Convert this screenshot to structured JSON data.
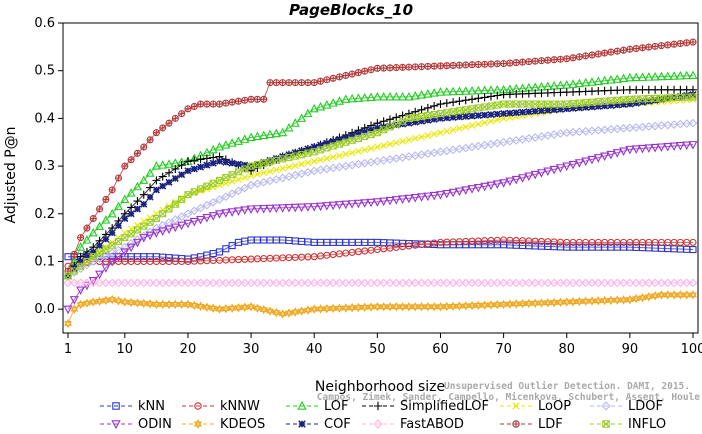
{
  "chart_data": {
    "type": "line",
    "title": "PageBlocks_10",
    "xlabel": "Neighborhood size",
    "ylabel": "Adjusted P@n",
    "xlim": [
      1,
      100
    ],
    "ylim": [
      -0.05,
      0.6
    ],
    "xticks": [
      "1",
      "10",
      "20",
      "30",
      "40",
      "50",
      "60",
      "70",
      "80",
      "90",
      "100"
    ],
    "yticks": [
      "0.0",
      "0.1",
      "0.2",
      "0.3",
      "0.4",
      "0.5",
      "0.6"
    ],
    "legend_position": "bottom",
    "series": [
      {
        "name": "kNN",
        "color": "#2f36c8",
        "marker": "square",
        "x": [
          1,
          5,
          10,
          15,
          20,
          22,
          25,
          28,
          30,
          35,
          40,
          50,
          60,
          70,
          80,
          90,
          100
        ],
        "y": [
          0.11,
          0.11,
          0.11,
          0.11,
          0.105,
          0.11,
          0.12,
          0.14,
          0.145,
          0.145,
          0.14,
          0.14,
          0.135,
          0.135,
          0.13,
          0.13,
          0.125
        ]
      },
      {
        "name": "kNNW",
        "color": "#cc3333",
        "marker": "circle",
        "x": [
          1,
          5,
          10,
          20,
          30,
          40,
          50,
          60,
          70,
          80,
          90,
          100
        ],
        "y": [
          0.09,
          0.1,
          0.1,
          0.1,
          0.105,
          0.11,
          0.125,
          0.14,
          0.145,
          0.14,
          0.14,
          0.14
        ]
      },
      {
        "name": "LOF",
        "color": "#22cc22",
        "marker": "triangle-up",
        "x": [
          1,
          3,
          5,
          8,
          10,
          13,
          15,
          20,
          25,
          30,
          35,
          40,
          45,
          50,
          55,
          60,
          70,
          80,
          90,
          100
        ],
        "y": [
          0.07,
          0.13,
          0.16,
          0.2,
          0.23,
          0.27,
          0.3,
          0.31,
          0.34,
          0.36,
          0.37,
          0.42,
          0.44,
          0.445,
          0.445,
          0.455,
          0.46,
          0.47,
          0.485,
          0.49
        ]
      },
      {
        "name": "SimplifiedLOF",
        "color": "#000000",
        "marker": "plus",
        "x": [
          1,
          3,
          5,
          8,
          10,
          13,
          15,
          20,
          25,
          30,
          35,
          40,
          50,
          55,
          60,
          70,
          80,
          90,
          100
        ],
        "y": [
          0.07,
          0.11,
          0.13,
          0.17,
          0.2,
          0.24,
          0.27,
          0.31,
          0.32,
          0.29,
          0.32,
          0.34,
          0.39,
          0.41,
          0.43,
          0.45,
          0.455,
          0.46,
          0.46
        ]
      },
      {
        "name": "LoOP",
        "color": "#e8e800",
        "marker": "x",
        "x": [
          1,
          5,
          10,
          15,
          20,
          25,
          30,
          40,
          50,
          60,
          70,
          80,
          90,
          100
        ],
        "y": [
          0.07,
          0.11,
          0.16,
          0.2,
          0.24,
          0.26,
          0.28,
          0.31,
          0.34,
          0.37,
          0.4,
          0.42,
          0.43,
          0.44
        ]
      },
      {
        "name": "LDOF",
        "color": "#b9b9ee",
        "marker": "diamond",
        "x": [
          1,
          5,
          10,
          15,
          20,
          25,
          30,
          40,
          50,
          60,
          70,
          80,
          90,
          100
        ],
        "y": [
          0.07,
          0.1,
          0.13,
          0.17,
          0.2,
          0.23,
          0.26,
          0.29,
          0.31,
          0.33,
          0.35,
          0.37,
          0.38,
          0.39
        ]
      },
      {
        "name": "ODIN",
        "color": "#9933cc",
        "marker": "triangle-down",
        "x": [
          1,
          3,
          5,
          8,
          10,
          13,
          15,
          20,
          25,
          30,
          40,
          50,
          60,
          70,
          80,
          90,
          100
        ],
        "y": [
          0.0,
          0.04,
          0.06,
          0.1,
          0.12,
          0.15,
          0.16,
          0.18,
          0.2,
          0.21,
          0.215,
          0.225,
          0.24,
          0.265,
          0.3,
          0.335,
          0.345
        ]
      },
      {
        "name": "KDEOS",
        "color": "#f0a820",
        "marker": "hexagram",
        "x": [
          1,
          2,
          3,
          5,
          8,
          10,
          15,
          20,
          25,
          30,
          35,
          40,
          50,
          60,
          70,
          80,
          90,
          95,
          100
        ],
        "y": [
          -0.03,
          0.0,
          0.01,
          0.015,
          0.02,
          0.015,
          0.01,
          0.01,
          0.0,
          0.005,
          -0.01,
          0.0,
          0.005,
          0.005,
          0.01,
          0.015,
          0.02,
          0.03,
          0.03
        ]
      },
      {
        "name": "COF",
        "color": "#1a237e",
        "marker": "star",
        "x": [
          1,
          3,
          5,
          8,
          10,
          13,
          15,
          20,
          25,
          30,
          35,
          40,
          50,
          60,
          70,
          80,
          90,
          100
        ],
        "y": [
          0.07,
          0.1,
          0.12,
          0.16,
          0.19,
          0.22,
          0.25,
          0.29,
          0.31,
          0.3,
          0.32,
          0.34,
          0.38,
          0.4,
          0.41,
          0.42,
          0.43,
          0.45
        ]
      },
      {
        "name": "FastABOD",
        "color": "#ffb3e6",
        "marker": "diamond",
        "x": [
          1,
          5,
          10,
          20,
          30,
          40,
          50,
          60,
          70,
          80,
          90,
          100
        ],
        "y": [
          0.055,
          0.055,
          0.055,
          0.055,
          0.055,
          0.055,
          0.055,
          0.055,
          0.055,
          0.055,
          0.055,
          0.055
        ]
      },
      {
        "name": "LDF",
        "color": "#b33a3a",
        "marker": "circle-plus",
        "x": [
          1,
          3,
          5,
          8,
          10,
          13,
          15,
          20,
          22,
          25,
          30,
          32,
          33,
          35,
          40,
          45,
          50,
          60,
          70,
          80,
          90,
          100
        ],
        "y": [
          0.08,
          0.15,
          0.19,
          0.25,
          0.3,
          0.34,
          0.37,
          0.42,
          0.43,
          0.43,
          0.44,
          0.44,
          0.475,
          0.475,
          0.475,
          0.49,
          0.505,
          0.51,
          0.515,
          0.525,
          0.545,
          0.56
        ]
      },
      {
        "name": "INFLO",
        "color": "#9ccc2a",
        "marker": "square-x",
        "x": [
          1,
          5,
          10,
          15,
          20,
          25,
          30,
          40,
          50,
          55,
          60,
          65,
          70,
          80,
          90,
          100
        ],
        "y": [
          0.07,
          0.11,
          0.15,
          0.19,
          0.24,
          0.27,
          0.3,
          0.33,
          0.37,
          0.4,
          0.41,
          0.42,
          0.43,
          0.43,
          0.44,
          0.445
        ]
      }
    ],
    "legend_order": [
      "kNN",
      "kNNW",
      "LOF",
      "SimplifiedLOF",
      "LoOP",
      "LDOF",
      "ODIN",
      "KDEOS",
      "COF",
      "FastABOD",
      "LDF",
      "INFLO"
    ],
    "watermark": [
      "Campos, Zimek, Sander, Campello, Micenkova, Schubert, Assent, Houle",
      "Unsupervised Outlier Detection. DAMI, 2015."
    ]
  }
}
